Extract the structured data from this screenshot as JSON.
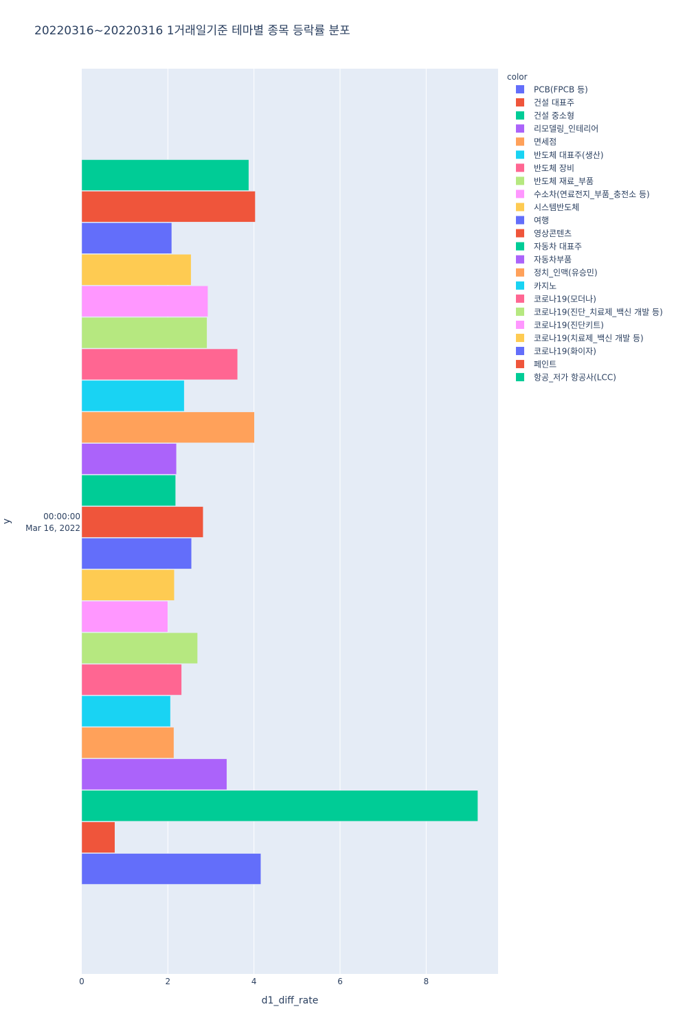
{
  "chart_data": {
    "type": "bar",
    "orientation": "horizontal",
    "barmode": "group",
    "title": "20220316~20220316 1거래일기준 테마별 종목 등락률 분포",
    "xlabel": "d1_diff_rate",
    "ylabel": "y",
    "xlim": [
      0,
      9.67
    ],
    "xticks": [
      0,
      2,
      4,
      6,
      8
    ],
    "y_category_lines": [
      "00:00:00",
      "Mar 16, 2022"
    ],
    "grid": true,
    "legend_title": "color",
    "legend_position": "top-right",
    "series": [
      {
        "name": "PCB(FPCB 등)",
        "color": "#636efa",
        "value": 4.16
      },
      {
        "name": "건설 대표주",
        "color": "#EF553B",
        "value": 0.77
      },
      {
        "name": "건설 중소형",
        "color": "#00cc96",
        "value": 9.2
      },
      {
        "name": "리모델링_인테리어",
        "color": "#ab63fa",
        "value": 3.37
      },
      {
        "name": "면세점",
        "color": "#FFA15A",
        "value": 2.14
      },
      {
        "name": "반도체 대표주(생산)",
        "color": "#19d3f3",
        "value": 2.06
      },
      {
        "name": "반도체 장비",
        "color": "#FF6692",
        "value": 2.32
      },
      {
        "name": "반도체 재료_부품",
        "color": "#B6E880",
        "value": 2.69
      },
      {
        "name": "수소차(연료전지_부품_충전소 등)",
        "color": "#FF97FF",
        "value": 2.0
      },
      {
        "name": "시스템반도체",
        "color": "#FECB52",
        "value": 2.15
      },
      {
        "name": "여행",
        "color": "#636efa",
        "value": 2.55
      },
      {
        "name": "영상콘텐츠",
        "color": "#EF553B",
        "value": 2.82
      },
      {
        "name": "자동차 대표주",
        "color": "#00cc96",
        "value": 2.18
      },
      {
        "name": "자동차부품",
        "color": "#ab63fa",
        "value": 2.2
      },
      {
        "name": "정치_인맥(유승민)",
        "color": "#FFA15A",
        "value": 4.01
      },
      {
        "name": "카지노",
        "color": "#19d3f3",
        "value": 2.38
      },
      {
        "name": "코로나19(모더나)",
        "color": "#FF6692",
        "value": 3.62
      },
      {
        "name": "코로나19(진단_치료제_백신 개발 등)",
        "color": "#B6E880",
        "value": 2.91
      },
      {
        "name": "코로나19(진단키트)",
        "color": "#FF97FF",
        "value": 2.93
      },
      {
        "name": "코로나19(치료제_백신 개발 등)",
        "color": "#FECB52",
        "value": 2.54
      },
      {
        "name": "코로나19(화이자)",
        "color": "#636efa",
        "value": 2.09
      },
      {
        "name": "페인트",
        "color": "#EF553B",
        "value": 4.03
      },
      {
        "name": "항공_저가 항공사(LCC)",
        "color": "#00cc96",
        "value": 3.88
      }
    ]
  }
}
